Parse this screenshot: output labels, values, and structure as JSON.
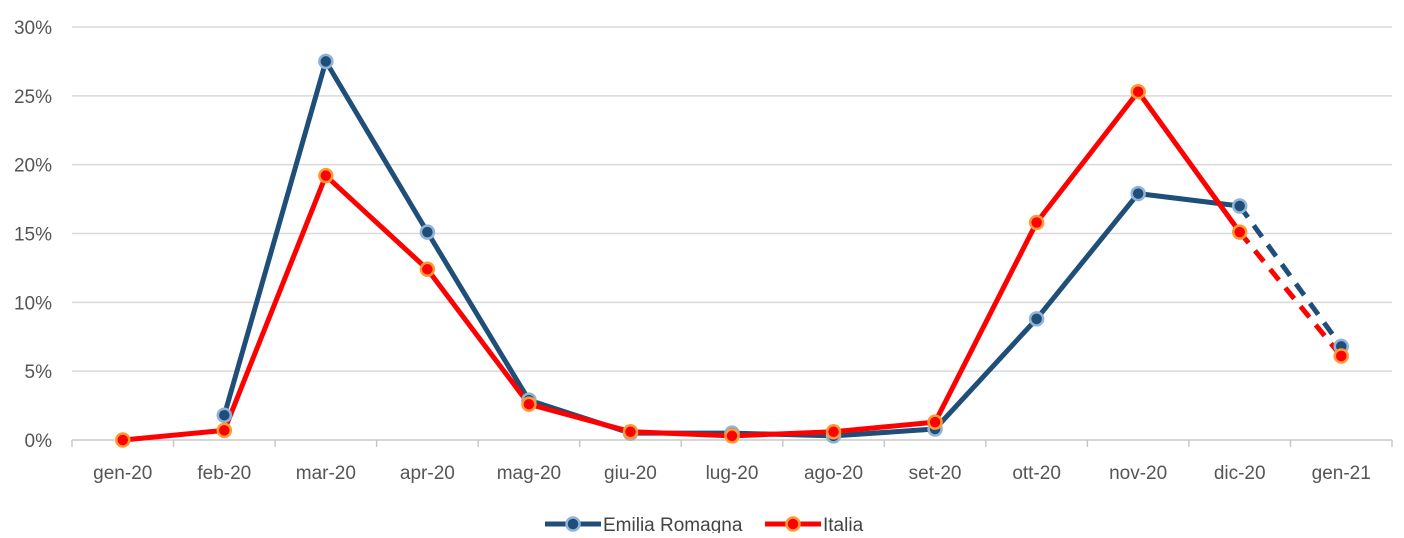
{
  "chart_data": {
    "type": "line",
    "categories": [
      "gen-20",
      "feb-20",
      "mar-20",
      "apr-20",
      "mag-20",
      "giu-20",
      "lug-20",
      "ago-20",
      "set-20",
      "ott-20",
      "nov-20",
      "dic-20",
      "gen-21"
    ],
    "y_ticks": [
      "0%",
      "5%",
      "10%",
      "15%",
      "20%",
      "25%",
      "30%"
    ],
    "ylim": [
      0,
      30
    ],
    "y_unit": "%",
    "grid": "horizontal",
    "legend_position": "bottom",
    "series": [
      {
        "name": "Emilia Romagna",
        "color": "#1f4e79",
        "values": [
          null,
          1.8,
          27.5,
          15.1,
          2.9,
          0.5,
          0.5,
          0.3,
          0.8,
          8.8,
          17.9,
          17.0,
          6.8
        ],
        "dashed_from_index": 11
      },
      {
        "name": "Italia",
        "color": "#ff0000",
        "values": [
          0.0,
          0.7,
          19.2,
          12.4,
          2.6,
          0.6,
          0.3,
          0.6,
          1.3,
          15.8,
          25.3,
          15.1,
          6.1
        ],
        "dashed_from_index": 11
      }
    ]
  }
}
